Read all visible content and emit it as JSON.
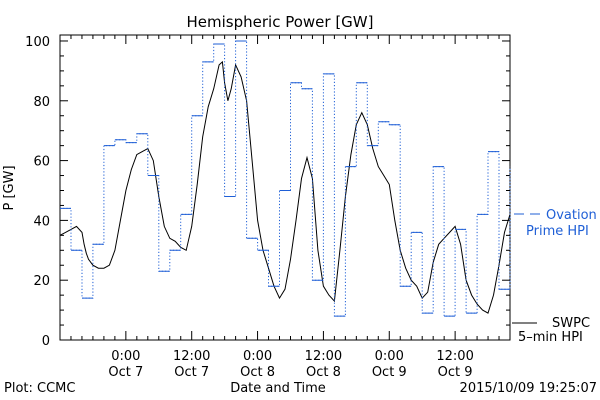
{
  "chart_data": {
    "type": "line",
    "title": "Hemispheric Power [GW]",
    "ylabel": "P [GW]",
    "xlabel": "Date and Time",
    "ylim": [
      0,
      102
    ],
    "yticks": [
      0,
      20,
      40,
      60,
      80,
      100
    ],
    "xlim": [
      -6,
      35
    ],
    "x_unit": "hours since 2015-10-07 00:00 UT",
    "xticks": [
      {
        "x": 0,
        "time": "0:00",
        "date": "Oct 7"
      },
      {
        "x": 6,
        "time": "12:00",
        "date": "Oct 7"
      },
      {
        "x": 12,
        "time": "0:00",
        "date": "Oct 8"
      },
      {
        "x": 18,
        "time": "12:00",
        "date": "Oct 8"
      },
      {
        "x": 24,
        "time": "0:00",
        "date": "Oct 9"
      },
      {
        "x": 30,
        "time": "12:00",
        "date": "Oct 9"
      }
    ],
    "series": [
      {
        "name": "SWPC 5-min HPI",
        "legend_lines": [
          "SWPC",
          "5–min HPI"
        ],
        "color": "#000000",
        "style": "solid",
        "points": [
          [
            -6,
            35
          ],
          [
            -5.5,
            36
          ],
          [
            -5,
            37
          ],
          [
            -4.5,
            38
          ],
          [
            -4,
            36
          ],
          [
            -3.8,
            32
          ],
          [
            -3.6,
            29
          ],
          [
            -3.4,
            27
          ],
          [
            -3,
            25
          ],
          [
            -2.5,
            24
          ],
          [
            -2,
            24
          ],
          [
            -1.5,
            25
          ],
          [
            -1,
            30
          ],
          [
            -0.5,
            40
          ],
          [
            0,
            50
          ],
          [
            0.5,
            57
          ],
          [
            1,
            62
          ],
          [
            1.5,
            63
          ],
          [
            2,
            64
          ],
          [
            2.5,
            60
          ],
          [
            3,
            48
          ],
          [
            3.5,
            38
          ],
          [
            4,
            34
          ],
          [
            4.5,
            33
          ],
          [
            5,
            31
          ],
          [
            5.5,
            30
          ],
          [
            6,
            38
          ],
          [
            6.5,
            52
          ],
          [
            7,
            68
          ],
          [
            7.5,
            78
          ],
          [
            8,
            84
          ],
          [
            8.5,
            92
          ],
          [
            8.8,
            93
          ],
          [
            9,
            86
          ],
          [
            9.3,
            80
          ],
          [
            9.6,
            84
          ],
          [
            10,
            92
          ],
          [
            10.5,
            88
          ],
          [
            11,
            80
          ],
          [
            11.5,
            60
          ],
          [
            12,
            40
          ],
          [
            12.5,
            30
          ],
          [
            13,
            24
          ],
          [
            13.5,
            18
          ],
          [
            14,
            14
          ],
          [
            14.5,
            17
          ],
          [
            15,
            27
          ],
          [
            15.5,
            40
          ],
          [
            16,
            54
          ],
          [
            16.5,
            61
          ],
          [
            17,
            54
          ],
          [
            17.5,
            30
          ],
          [
            18,
            18
          ],
          [
            18.5,
            15
          ],
          [
            19,
            13
          ],
          [
            19.5,
            30
          ],
          [
            20,
            48
          ],
          [
            20.5,
            62
          ],
          [
            21,
            72
          ],
          [
            21.5,
            76
          ],
          [
            22,
            72
          ],
          [
            22.5,
            64
          ],
          [
            23,
            58
          ],
          [
            23.5,
            55
          ],
          [
            24,
            52
          ],
          [
            24.5,
            40
          ],
          [
            25,
            30
          ],
          [
            25.5,
            24
          ],
          [
            26,
            20
          ],
          [
            26.5,
            18
          ],
          [
            27,
            14
          ],
          [
            27.5,
            16
          ],
          [
            28,
            26
          ],
          [
            28.5,
            32
          ],
          [
            29,
            34
          ],
          [
            29.5,
            36
          ],
          [
            30,
            38
          ],
          [
            30.5,
            32
          ],
          [
            31,
            20
          ],
          [
            31.5,
            15
          ],
          [
            32,
            12
          ],
          [
            32.5,
            10
          ],
          [
            33,
            9
          ],
          [
            33.5,
            15
          ],
          [
            34,
            25
          ],
          [
            34.5,
            36
          ],
          [
            35,
            42
          ]
        ]
      },
      {
        "name": "Ovation Prime HPI",
        "legend_lines": [
          "Ovation",
          "Prime HPI"
        ],
        "color": "#1f5fd6",
        "style": "dotted-step",
        "points": [
          [
            -6,
            44
          ],
          [
            -5,
            30
          ],
          [
            -4,
            14
          ],
          [
            -3,
            32
          ],
          [
            -2,
            65
          ],
          [
            -1,
            67
          ],
          [
            0,
            66
          ],
          [
            1,
            69
          ],
          [
            2,
            55
          ],
          [
            3,
            23
          ],
          [
            4,
            30
          ],
          [
            5,
            42
          ],
          [
            6,
            75
          ],
          [
            7,
            93
          ],
          [
            8,
            99
          ],
          [
            9,
            48
          ],
          [
            10,
            100
          ],
          [
            11,
            34
          ],
          [
            12,
            30
          ],
          [
            13,
            18
          ],
          [
            14,
            50
          ],
          [
            15,
            86
          ],
          [
            16,
            84
          ],
          [
            17,
            20
          ],
          [
            18,
            89
          ],
          [
            19,
            8
          ],
          [
            20,
            58
          ],
          [
            21,
            86
          ],
          [
            22,
            65
          ],
          [
            23,
            73
          ],
          [
            24,
            72
          ],
          [
            25,
            18
          ],
          [
            26,
            36
          ],
          [
            27,
            9
          ],
          [
            28,
            58
          ],
          [
            29,
            8
          ],
          [
            30,
            37
          ],
          [
            31,
            9
          ],
          [
            32,
            42
          ],
          [
            33,
            63
          ],
          [
            34,
            17
          ],
          [
            35,
            58
          ]
        ]
      }
    ],
    "footer_left": "Plot: CCMC",
    "footer_right": "2015/10/09 19:25:07"
  }
}
